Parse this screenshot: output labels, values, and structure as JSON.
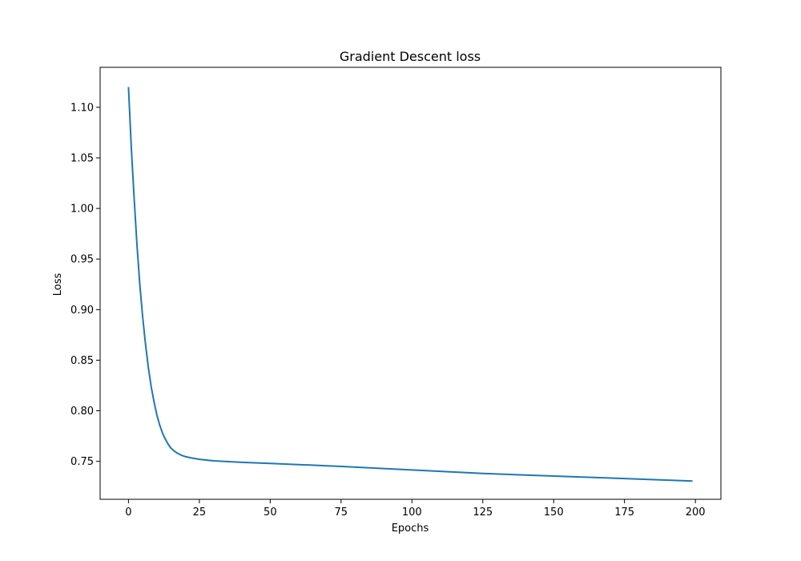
{
  "chart_data": {
    "type": "line",
    "title": "Gradient Descent loss",
    "xlabel": "Epochs",
    "ylabel": "Loss",
    "xlim": [
      -10,
      209
    ],
    "ylim": [
      0.7125,
      1.1395
    ],
    "xticks": [
      0,
      25,
      50,
      75,
      100,
      125,
      150,
      175,
      200
    ],
    "yticks": [
      0.75,
      0.8,
      0.85,
      0.9,
      0.95,
      1.0,
      1.05,
      1.1
    ],
    "ytick_labels": [
      "0.75",
      "0.80",
      "0.85",
      "0.90",
      "0.95",
      "1.00",
      "1.05",
      "1.10"
    ],
    "xtick_labels": [
      "0",
      "25",
      "50",
      "75",
      "100",
      "125",
      "150",
      "175",
      "200"
    ],
    "grid": false,
    "series": [
      {
        "color": "#1f77b4",
        "x": [
          0,
          1,
          2,
          3,
          4,
          5,
          6,
          7,
          8,
          9,
          10,
          11,
          12,
          13,
          14,
          15,
          16,
          17,
          18,
          19,
          20,
          22,
          25,
          30,
          40,
          50,
          75,
          100,
          125,
          150,
          175,
          199
        ],
        "y": [
          1.12,
          1.06,
          1.01,
          0.964,
          0.925,
          0.893,
          0.866,
          0.843,
          0.824,
          0.809,
          0.796,
          0.786,
          0.778,
          0.772,
          0.767,
          0.763,
          0.7605,
          0.7585,
          0.757,
          0.7557,
          0.7547,
          0.7535,
          0.752,
          0.7505,
          0.749,
          0.748,
          0.745,
          0.7415,
          0.738,
          0.7355,
          0.733,
          0.7305
        ]
      }
    ]
  }
}
